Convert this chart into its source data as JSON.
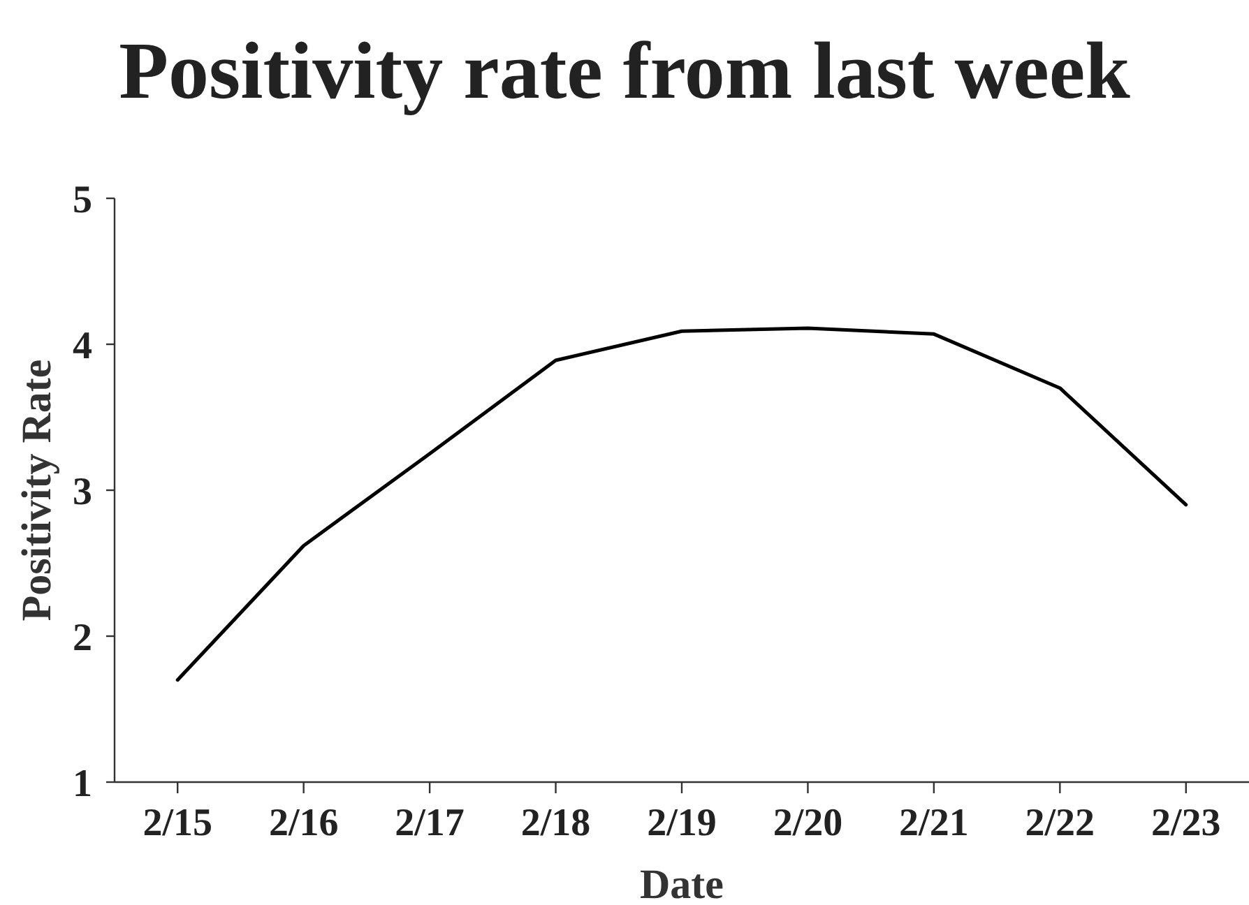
{
  "chart_data": {
    "type": "line",
    "title": "Positivity rate from last week",
    "xlabel": "Date",
    "ylabel": "Positivity Rate",
    "categories": [
      "2/15",
      "2/16",
      "2/17",
      "2/18",
      "2/19",
      "2/20",
      "2/21",
      "2/22",
      "2/23"
    ],
    "series": [
      {
        "color": "#000000",
        "values": [
          1.7,
          2.62,
          3.25,
          3.89,
          4.09,
          4.11,
          4.07,
          3.7,
          2.9
        ]
      }
    ],
    "ylim": [
      1,
      5
    ],
    "yticks": [
      1,
      2,
      3,
      4,
      5
    ],
    "grid": false,
    "marker": "none",
    "line_style": "solid"
  }
}
